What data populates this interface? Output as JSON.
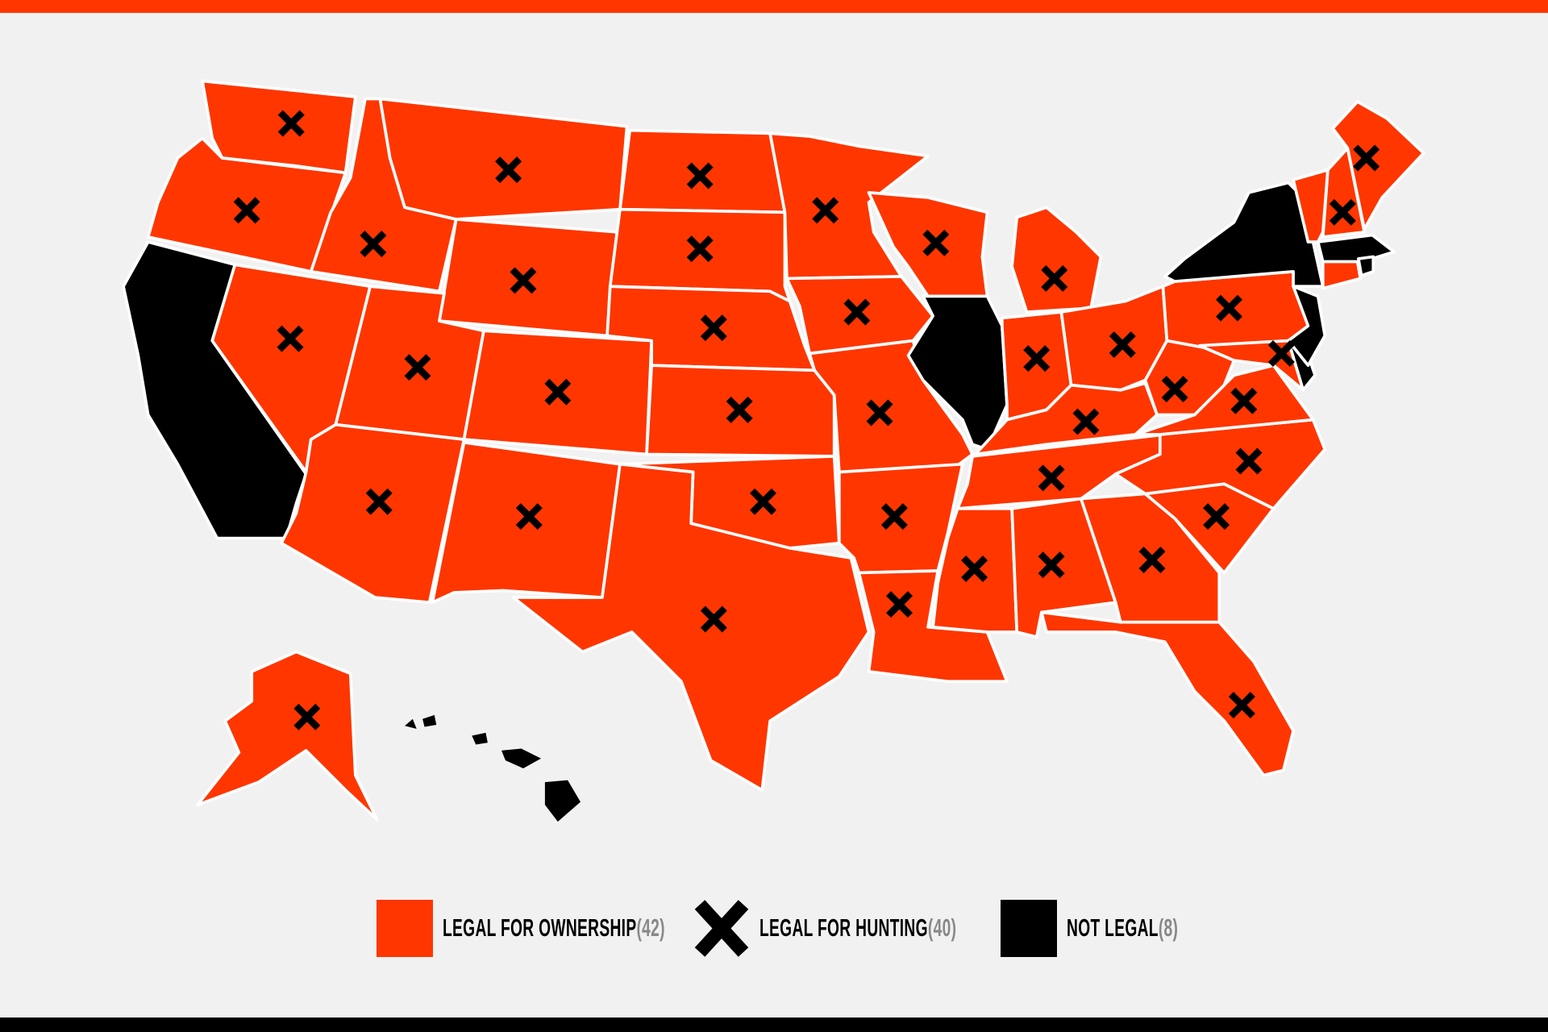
{
  "colors": {
    "legal": "#ff3600",
    "not_legal": "#000000",
    "border": "#ffffff",
    "background": "#f1f1f1",
    "hunting_mark": "#000000"
  },
  "legend": [
    {
      "label": "LEGAL FOR OWNERSHIP",
      "count": "(42)",
      "icon": "orange-square"
    },
    {
      "label": "LEGAL FOR HUNTING",
      "count": "(40)",
      "icon": "x-mark-icon"
    },
    {
      "label": "NOT LEGAL",
      "count": "(8)",
      "icon": "black-square"
    }
  ],
  "states": [
    {
      "id": "WA",
      "status": "legal",
      "hunting": true
    },
    {
      "id": "OR",
      "status": "legal",
      "hunting": true
    },
    {
      "id": "CA",
      "status": "not_legal",
      "hunting": false
    },
    {
      "id": "ID",
      "status": "legal",
      "hunting": true
    },
    {
      "id": "NV",
      "status": "legal",
      "hunting": true
    },
    {
      "id": "MT",
      "status": "legal",
      "hunting": true
    },
    {
      "id": "WY",
      "status": "legal",
      "hunting": true
    },
    {
      "id": "UT",
      "status": "legal",
      "hunting": true
    },
    {
      "id": "AZ",
      "status": "legal",
      "hunting": true
    },
    {
      "id": "CO",
      "status": "legal",
      "hunting": true
    },
    {
      "id": "NM",
      "status": "legal",
      "hunting": true
    },
    {
      "id": "ND",
      "status": "legal",
      "hunting": true
    },
    {
      "id": "SD",
      "status": "legal",
      "hunting": true
    },
    {
      "id": "NE",
      "status": "legal",
      "hunting": true
    },
    {
      "id": "KS",
      "status": "legal",
      "hunting": true
    },
    {
      "id": "OK",
      "status": "legal",
      "hunting": true
    },
    {
      "id": "TX",
      "status": "legal",
      "hunting": true
    },
    {
      "id": "MN",
      "status": "legal",
      "hunting": true
    },
    {
      "id": "IA",
      "status": "legal",
      "hunting": true
    },
    {
      "id": "MO",
      "status": "legal",
      "hunting": true
    },
    {
      "id": "AR",
      "status": "legal",
      "hunting": true
    },
    {
      "id": "LA",
      "status": "legal",
      "hunting": true
    },
    {
      "id": "WI",
      "status": "legal",
      "hunting": true
    },
    {
      "id": "IL",
      "status": "not_legal",
      "hunting": false
    },
    {
      "id": "MI",
      "status": "legal",
      "hunting": true
    },
    {
      "id": "IN",
      "status": "legal",
      "hunting": true
    },
    {
      "id": "OH",
      "status": "legal",
      "hunting": true
    },
    {
      "id": "KY",
      "status": "legal",
      "hunting": true
    },
    {
      "id": "TN",
      "status": "legal",
      "hunting": true
    },
    {
      "id": "MS",
      "status": "legal",
      "hunting": true
    },
    {
      "id": "AL",
      "status": "legal",
      "hunting": true
    },
    {
      "id": "GA",
      "status": "legal",
      "hunting": true
    },
    {
      "id": "FL",
      "status": "legal",
      "hunting": true
    },
    {
      "id": "SC",
      "status": "legal",
      "hunting": true
    },
    {
      "id": "NC",
      "status": "legal",
      "hunting": true
    },
    {
      "id": "VA",
      "status": "legal",
      "hunting": true
    },
    {
      "id": "WV",
      "status": "legal",
      "hunting": true
    },
    {
      "id": "PA",
      "status": "legal",
      "hunting": true
    },
    {
      "id": "MD",
      "status": "legal",
      "hunting": true
    },
    {
      "id": "DE",
      "status": "not_legal",
      "hunting": false
    },
    {
      "id": "NJ",
      "status": "not_legal",
      "hunting": false
    },
    {
      "id": "NY",
      "status": "not_legal",
      "hunting": false
    },
    {
      "id": "VT",
      "status": "legal",
      "hunting": false
    },
    {
      "id": "NH",
      "status": "legal",
      "hunting": true
    },
    {
      "id": "ME",
      "status": "legal",
      "hunting": true
    },
    {
      "id": "MA",
      "status": "not_legal",
      "hunting": false
    },
    {
      "id": "CT",
      "status": "legal",
      "hunting": false
    },
    {
      "id": "RI",
      "status": "not_legal",
      "hunting": false
    },
    {
      "id": "AK",
      "status": "legal",
      "hunting": true
    },
    {
      "id": "HI",
      "status": "not_legal",
      "hunting": false
    }
  ]
}
